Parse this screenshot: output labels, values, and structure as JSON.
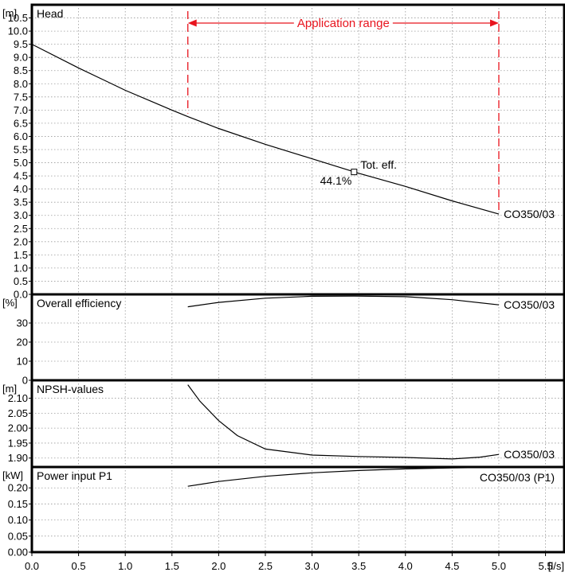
{
  "chart_data": {
    "type": "line",
    "x_axis": {
      "unit_label": "[l/s]",
      "min": 0.0,
      "max": 5.7,
      "ticks": [
        "0.0",
        "0.5",
        "1.0",
        "1.5",
        "2.0",
        "2.5",
        "3.0",
        "3.5",
        "4.0",
        "4.5",
        "5.0",
        "5.5"
      ]
    },
    "application_range": {
      "label": "Application range",
      "from": 1.67,
      "to": 5.0
    },
    "panels": [
      {
        "id": "head",
        "title": "Head",
        "unit_label": "[m]",
        "ymin": 0.0,
        "ymax": 11.0,
        "ticks": [
          "0.0",
          "0.5",
          "1.0",
          "1.5",
          "2.0",
          "2.5",
          "3.0",
          "3.5",
          "4.0",
          "4.5",
          "5.0",
          "5.5",
          "6.0",
          "6.5",
          "7.0",
          "7.5",
          "8.0",
          "8.5",
          "9.0",
          "9.5",
          "10.0",
          "10.5"
        ],
        "series": [
          {
            "name": "CO350/03",
            "x": [
              0.0,
              0.5,
              1.0,
              1.5,
              1.67,
              2.0,
              2.5,
              3.0,
              3.5,
              4.0,
              4.5,
              5.0
            ],
            "y": [
              9.5,
              8.6,
              7.75,
              7.0,
              6.75,
              6.3,
              5.7,
              5.15,
              4.6,
              4.1,
              3.55,
              3.05
            ]
          }
        ],
        "marker": {
          "x": 3.45,
          "y": 4.65,
          "label": "Tot. eff.",
          "value_label": "44.1%"
        }
      },
      {
        "id": "efficiency",
        "title": "Overall efficiency",
        "unit_label": "[%]",
        "ymin": 0,
        "ymax": 45,
        "ticks": [
          "0",
          "10",
          "20",
          "30"
        ],
        "series": [
          {
            "name": "CO350/03",
            "x": [
              1.67,
              2.0,
              2.5,
              3.0,
              3.45,
              4.0,
              4.5,
              5.0
            ],
            "y": [
              38.5,
              40.8,
              43.0,
              44.0,
              44.1,
              43.8,
              42.2,
              39.5
            ]
          }
        ]
      },
      {
        "id": "npsh",
        "title": "NPSH-values",
        "unit_label": "[m]",
        "ymin": 1.87,
        "ymax": 2.16,
        "ticks": [
          "1.90",
          "1.95",
          "2.00",
          "2.05",
          "2.10"
        ],
        "series": [
          {
            "name": "CO350/03",
            "x": [
              1.67,
              1.8,
              2.0,
              2.2,
              2.5,
              3.0,
              3.5,
              4.0,
              4.5,
              4.8,
              5.0
            ],
            "y": [
              2.145,
              2.09,
              2.025,
              1.975,
              1.93,
              1.91,
              1.905,
              1.902,
              1.897,
              1.903,
              1.912
            ]
          }
        ]
      },
      {
        "id": "power",
        "title": "Power input P1",
        "unit_label": "[kW]",
        "ymin": 0.0,
        "ymax": 0.265,
        "ticks": [
          "0.00",
          "0.05",
          "0.10",
          "0.15",
          "0.20"
        ],
        "series": [
          {
            "name": "CO350/03 (P1)",
            "x": [
              1.67,
              2.0,
              2.5,
              3.0,
              3.5,
              4.0,
              4.5,
              5.0,
              5.5,
              5.7
            ],
            "y": [
              0.205,
              0.22,
              0.236,
              0.247,
              0.254,
              0.259,
              0.262,
              0.264,
              0.265,
              0.265
            ]
          }
        ]
      }
    ]
  }
}
